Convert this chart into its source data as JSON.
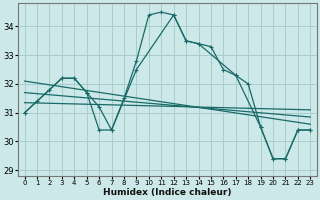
{
  "background_color": "#cce8e8",
  "grid_color": "#aacccc",
  "line_color": "#1a6a6a",
  "xlabel": "Humidex (Indice chaleur)",
  "xlim": [
    -0.5,
    23.5
  ],
  "ylim": [
    28.8,
    34.8
  ],
  "yticks": [
    29,
    30,
    31,
    32,
    33,
    34
  ],
  "xticks": [
    0,
    1,
    2,
    3,
    4,
    5,
    6,
    7,
    8,
    9,
    10,
    11,
    12,
    13,
    14,
    15,
    16,
    17,
    18,
    19,
    20,
    21,
    22,
    23
  ],
  "curve1_x": [
    0,
    1,
    2,
    3,
    4,
    5,
    6,
    7,
    8,
    9,
    10,
    11,
    12,
    13,
    14,
    15,
    16,
    17,
    18,
    19,
    20,
    21,
    22,
    23
  ],
  "curve1_y": [
    31.0,
    31.4,
    31.8,
    32.2,
    32.2,
    31.7,
    30.4,
    30.4,
    31.5,
    32.8,
    34.4,
    34.5,
    34.4,
    33.5,
    33.4,
    33.3,
    32.5,
    32.3,
    32.0,
    30.5,
    29.4,
    29.4,
    30.4,
    30.4
  ],
  "curve2_x": [
    0,
    2,
    3,
    4,
    5,
    6,
    7,
    9,
    12,
    13,
    14,
    17,
    19,
    20,
    21,
    22,
    23
  ],
  "curve2_y": [
    31.0,
    31.8,
    32.2,
    32.2,
    31.7,
    31.2,
    30.4,
    32.5,
    34.4,
    33.5,
    33.4,
    32.3,
    30.5,
    29.4,
    29.4,
    30.4,
    30.4
  ],
  "line3_x": [
    0,
    23
  ],
  "line3_y": [
    32.1,
    30.6
  ],
  "line4_x": [
    0,
    23
  ],
  "line4_y": [
    31.7,
    30.85
  ],
  "line5_x": [
    0,
    23
  ],
  "line5_y": [
    31.35,
    31.1
  ]
}
